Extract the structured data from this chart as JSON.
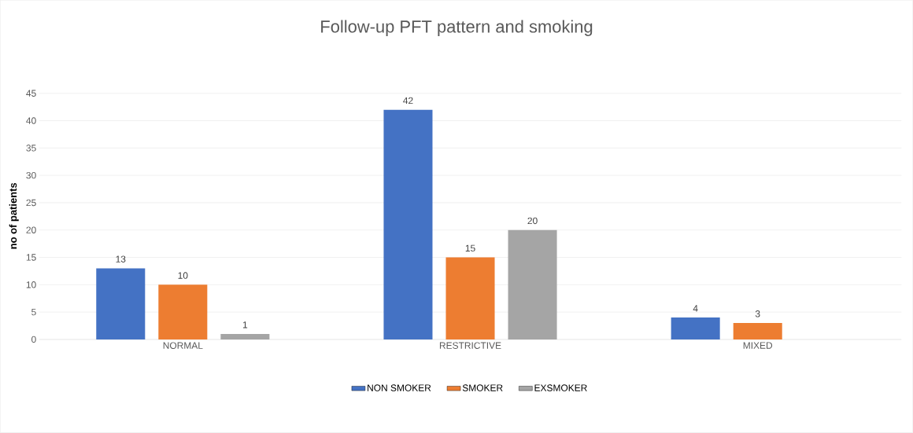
{
  "chart_data": {
    "type": "bar",
    "title": "Follow-up PFT pattern and smoking",
    "ylabel": "no of patients",
    "categories": [
      "NORMAL",
      "RESTRICTIVE",
      "MIXED"
    ],
    "series": [
      {
        "name": "NON SMOKER",
        "color": "#4472c4",
        "values": [
          13,
          42,
          4
        ]
      },
      {
        "name": "SMOKER",
        "color": "#ed7d31",
        "values": [
          10,
          15,
          3
        ]
      },
      {
        "name": "EXSMOKER",
        "color": "#a5a5a5",
        "values": [
          1,
          20,
          null
        ]
      }
    ],
    "ylim": [
      0,
      45
    ],
    "yticks": [
      0,
      5,
      10,
      15,
      20,
      25,
      30,
      35,
      40,
      45
    ],
    "grid": "y",
    "legend": "bottom",
    "data_labels": true
  }
}
